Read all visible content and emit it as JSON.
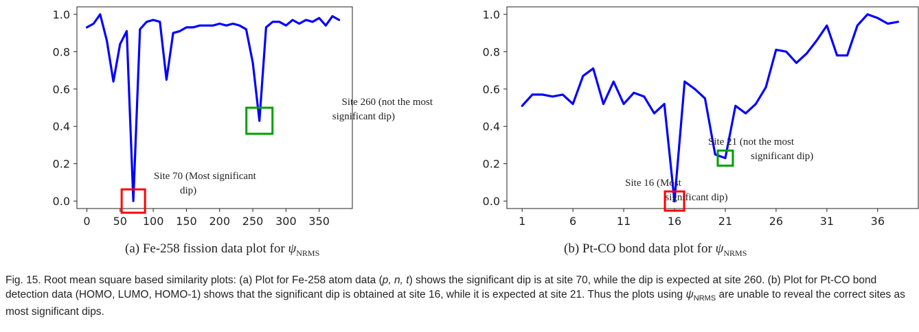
{
  "chart_data": [
    {
      "type": "line",
      "x": [
        0,
        10,
        20,
        30,
        40,
        50,
        60,
        70,
        80,
        90,
        100,
        110,
        120,
        130,
        140,
        150,
        160,
        170,
        180,
        190,
        200,
        210,
        220,
        230,
        240,
        250,
        260,
        270,
        280,
        290,
        300,
        310,
        320,
        330,
        340,
        350,
        360,
        370,
        380
      ],
      "series": [
        {
          "values": [
            0.93,
            0.95,
            1.0,
            0.86,
            0.64,
            0.84,
            0.91,
            0.0,
            0.92,
            0.96,
            0.97,
            0.96,
            0.65,
            0.9,
            0.91,
            0.93,
            0.93,
            0.94,
            0.94,
            0.94,
            0.95,
            0.94,
            0.95,
            0.94,
            0.92,
            0.74,
            0.43,
            0.93,
            0.96,
            0.96,
            0.94,
            0.97,
            0.95,
            0.97,
            0.96,
            0.98,
            0.94,
            0.99,
            0.97
          ],
          "color": "#0000ff"
        }
      ],
      "xticks": [
        "0",
        "50",
        "100",
        "150",
        "200",
        "250",
        "300",
        "350"
      ],
      "xtick_values": [
        0,
        50,
        100,
        150,
        200,
        250,
        300,
        350
      ],
      "yticks": [
        "0.0",
        "0.2",
        "0.4",
        "0.6",
        "0.8",
        "1.0"
      ],
      "xlim": [
        -15,
        400
      ],
      "ylim": [
        -0.04,
        1.04
      ],
      "grid": false,
      "annotations": [
        {
          "text_lines": [
            "Site 70 (Most significant",
            "dip)"
          ],
          "x": 70,
          "y": 0.0,
          "box_color": "#ff0000"
        },
        {
          "text_lines": [
            "Site 260 (not the most",
            "significant dip)"
          ],
          "x": 260,
          "y": 0.43,
          "box_color": "#00a000"
        }
      ],
      "subcaption_prefix": "(a) Fe-258 fission data plot for",
      "psi": "ψ",
      "psi_sub": "NRMS"
    },
    {
      "type": "line",
      "x": [
        1,
        2,
        3,
        4,
        5,
        6,
        7,
        8,
        9,
        10,
        11,
        12,
        13,
        14,
        15,
        16,
        17,
        18,
        19,
        20,
        21,
        22,
        23,
        24,
        25,
        26,
        27,
        28,
        29,
        30,
        31,
        32,
        33,
        34,
        35,
        36,
        37,
        38
      ],
      "series": [
        {
          "values": [
            0.51,
            0.57,
            0.57,
            0.56,
            0.57,
            0.52,
            0.67,
            0.71,
            0.52,
            0.64,
            0.52,
            0.58,
            0.56,
            0.47,
            0.52,
            0.0,
            0.64,
            0.6,
            0.55,
            0.25,
            0.23,
            0.51,
            0.47,
            0.52,
            0.61,
            0.81,
            0.8,
            0.74,
            0.79,
            0.86,
            0.94,
            0.78,
            0.78,
            0.94,
            1.0,
            0.98,
            0.95,
            0.96
          ],
          "color": "#0000ff"
        }
      ],
      "xticks": [
        "1",
        "6",
        "11",
        "16",
        "21",
        "26",
        "31",
        "36"
      ],
      "xtick_values": [
        1,
        6,
        11,
        16,
        21,
        26,
        31,
        36
      ],
      "yticks": [
        "0.0",
        "0.2",
        "0.4",
        "0.6",
        "0.8",
        "1.0"
      ],
      "xlim": [
        -0.5,
        40
      ],
      "ylim": [
        -0.04,
        1.04
      ],
      "grid": false,
      "annotations": [
        {
          "text_lines": [
            "Site 16 (Most",
            "significant dip)"
          ],
          "x": 16,
          "y": 0.0,
          "box_color": "#ff0000"
        },
        {
          "text_lines": [
            "Site 21 (not the most",
            "significant dip)"
          ],
          "x": 21,
          "y": 0.23,
          "box_color": "#00a000"
        }
      ],
      "subcaption_prefix": "(b) Pt-CO bond data plot for",
      "psi": "ψ",
      "psi_sub": "NRMS"
    }
  ],
  "caption": {
    "lead": "Fig. 15. Root mean square based similarity plots: (a) Plot for Fe-258 atom data (",
    "vars": "p, n, t",
    "mid": ") shows the significant dip is at site 70, while the dip is expected at site 260. (b) Plot for Pt-CO bond detection data (HOMO, LUMO, HOMO-1) shows that the significant dip is obtained at site 16, while it is expected at site 21. Thus the plots using ",
    "psi": "ψ",
    "psi_sub": "NRMS",
    "tail": " are unable to reveal the correct sites as most significant dips."
  }
}
